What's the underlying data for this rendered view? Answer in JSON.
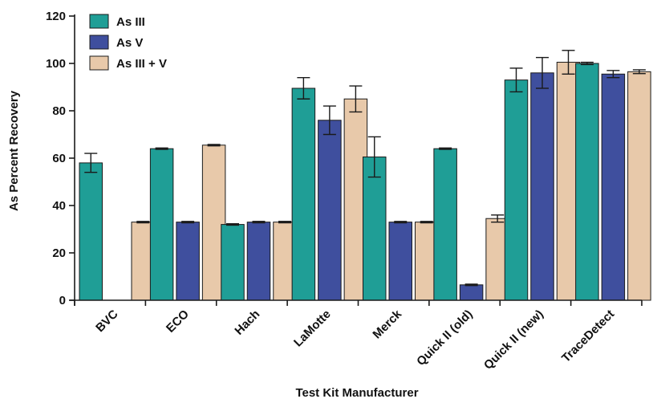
{
  "chart_data": {
    "type": "bar",
    "title": "",
    "xlabel": "Test Kit Manufacturer",
    "ylabel": "As Percent Recovery",
    "ylim": [
      0,
      120
    ],
    "yticks": [
      0,
      20,
      40,
      60,
      80,
      100,
      120
    ],
    "categories": [
      "BVC",
      "ECO",
      "Hach",
      "LaMotte",
      "Merck",
      "Quick II (old)",
      "Quick II (new)",
      "TraceDetect"
    ],
    "legend_position": "top-left",
    "grid": false,
    "series": [
      {
        "name": "As III",
        "color": "#1f9e96",
        "values": [
          58,
          64,
          32,
          89.5,
          60.5,
          64,
          93,
          100
        ],
        "errors": [
          4,
          0.3,
          0.3,
          4.5,
          8.5,
          0.3,
          5,
          0.5
        ]
      },
      {
        "name": "As V",
        "color": "#3f4f9e",
        "values": [
          0,
          33,
          33,
          76,
          33,
          6.5,
          96,
          95.5
        ],
        "errors": [
          0,
          0.3,
          0.3,
          6,
          0.3,
          0.3,
          6.5,
          1.5
        ]
      },
      {
        "name": "As III + V",
        "color": "#e8c9aa",
        "values": [
          33,
          65.5,
          33,
          85,
          33,
          34.5,
          100.5,
          96.5
        ],
        "errors": [
          0.3,
          0.3,
          0.3,
          5.5,
          0.3,
          1.5,
          5,
          0.8
        ]
      }
    ]
  }
}
